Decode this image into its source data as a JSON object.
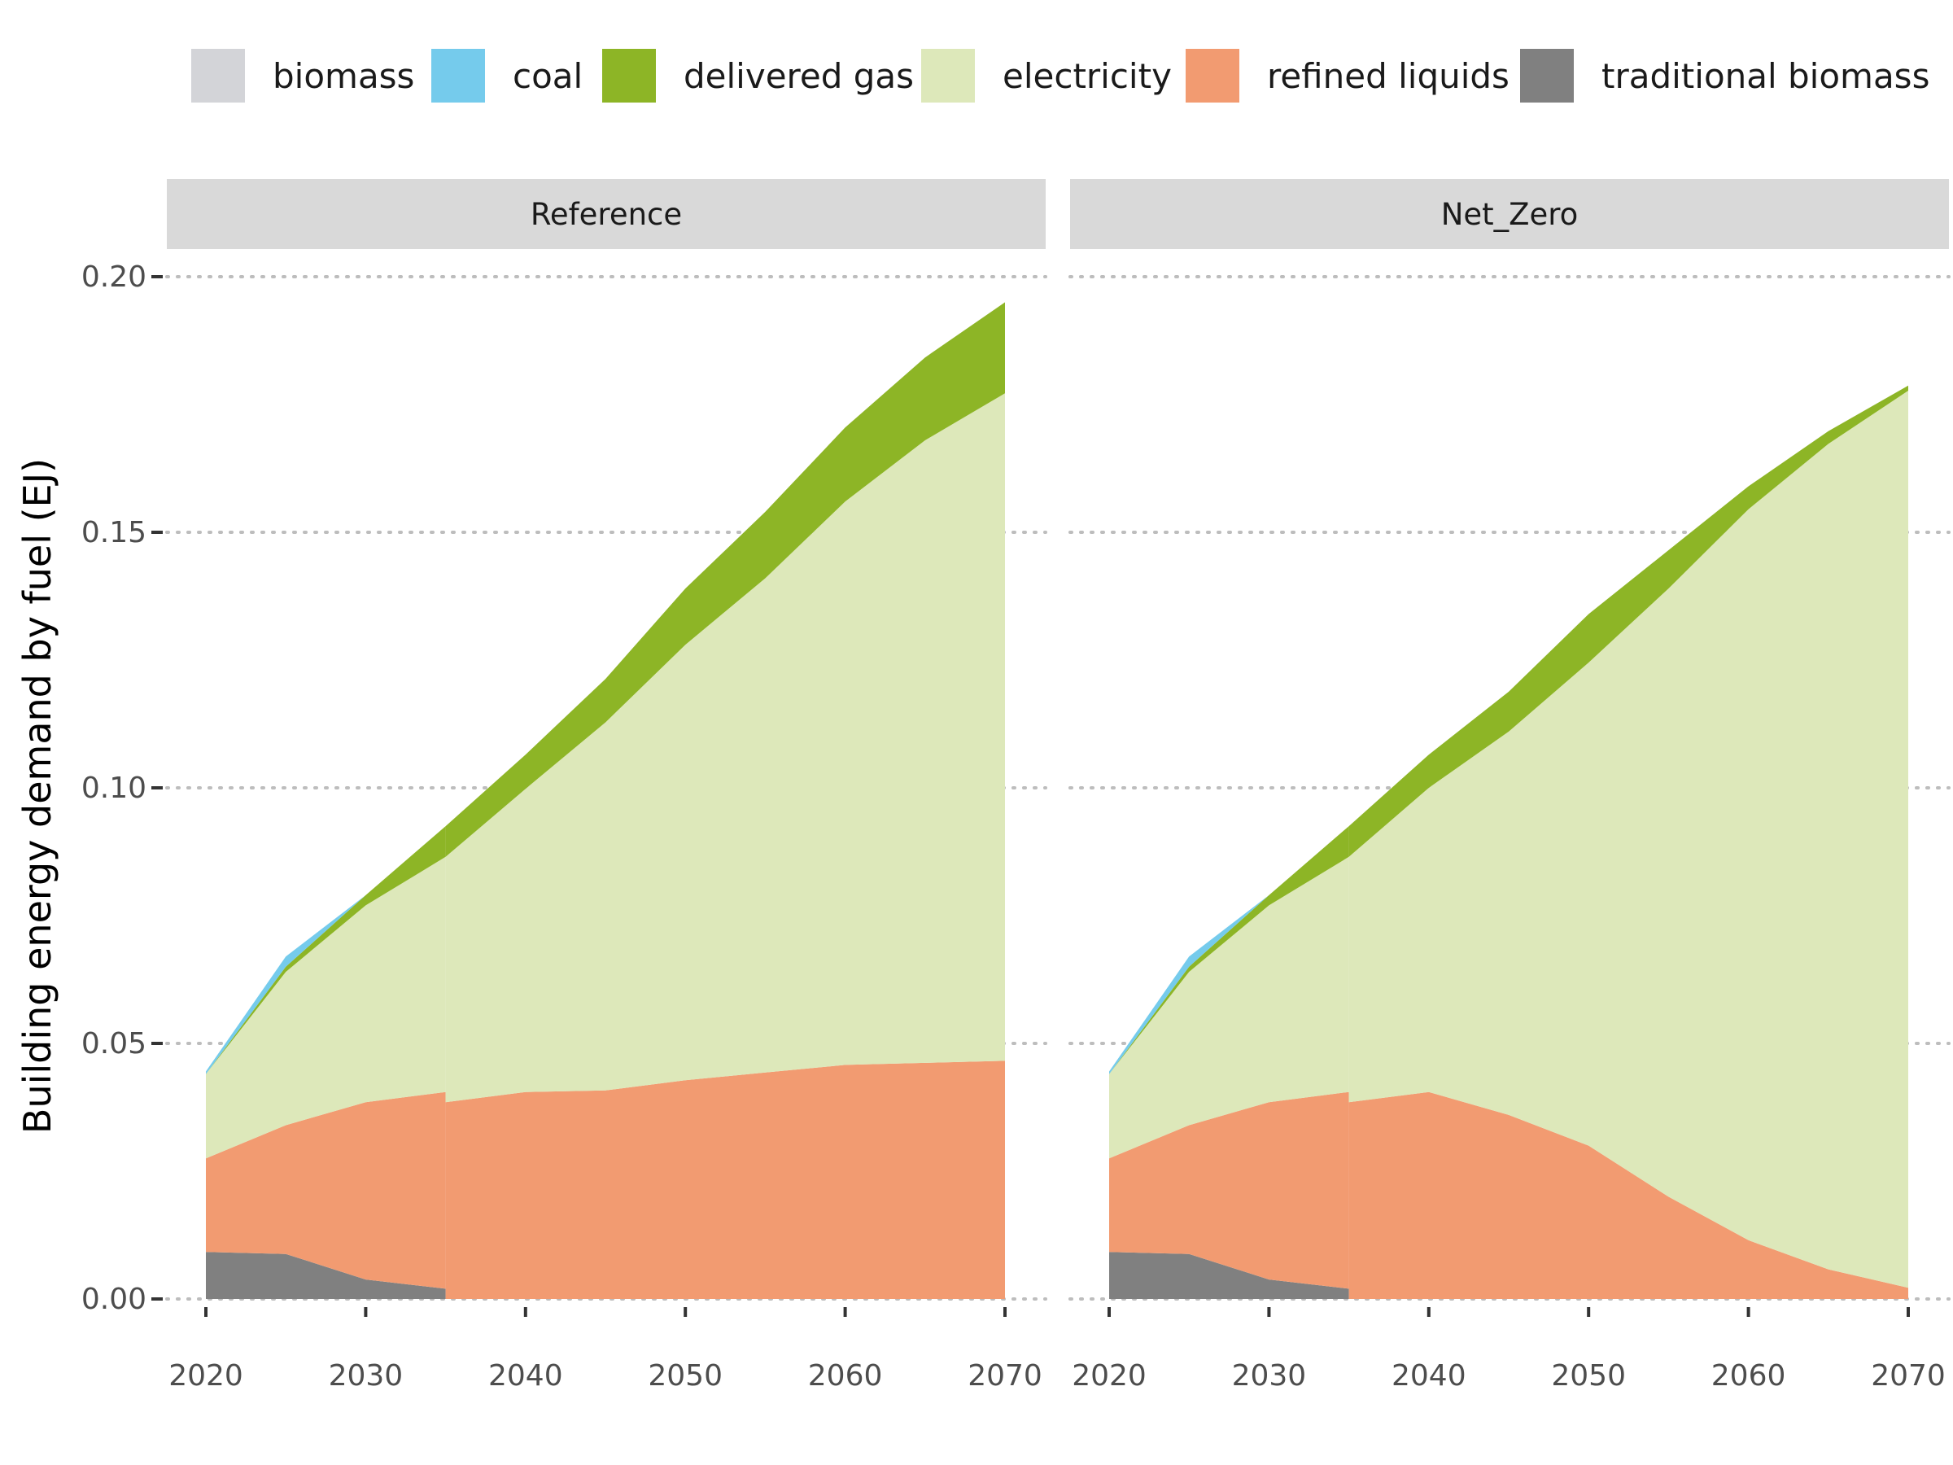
{
  "chart_data": {
    "type": "area",
    "stacked": true,
    "facet_by": "scenario",
    "ylabel": "Building energy demand by fuel (EJ)",
    "xlabel": "",
    "ylim": [
      0,
      0.2
    ],
    "xlim": [
      2020,
      2070
    ],
    "x_ticks": [
      2020,
      2030,
      2040,
      2050,
      2060,
      2070
    ],
    "y_ticks": [
      0.0,
      0.05,
      0.1,
      0.15,
      0.2
    ],
    "y_tick_labels": [
      "0.00",
      "0.05",
      "0.10",
      "0.15",
      "0.20"
    ],
    "grid": "major y only (dotted)",
    "legend_position": "top",
    "legend": [
      {
        "name": "biomass",
        "color": "#D3D4D8"
      },
      {
        "name": "coal",
        "color": "#75CBEC"
      },
      {
        "name": "delivered gas",
        "color": "#8DB526"
      },
      {
        "name": "electricity",
        "color": "#DDE8BA"
      },
      {
        "name": "refined liquids",
        "color": "#F29B71"
      },
      {
        "name": "traditional biomass",
        "color": "#808080"
      }
    ],
    "stack_order_bottom_to_top": [
      "traditional biomass",
      "refined liquids",
      "electricity",
      "delivered gas",
      "coal",
      "biomass"
    ],
    "panels": [
      {
        "title": "Reference",
        "segments": [
          {
            "x": [
              2020,
              2025,
              2030,
              2035
            ],
            "series": [
              {
                "name": "traditional biomass",
                "values": [
                  0.0092,
                  0.0088,
                  0.0038,
                  0.002
                ]
              },
              {
                "name": "refined liquids",
                "values": [
                  0.0183,
                  0.0252,
                  0.0347,
                  0.0385
                ]
              },
              {
                "name": "electricity",
                "values": [
                  0.0165,
                  0.03,
                  0.0385,
                  0.046
                ]
              },
              {
                "name": "delivered gas",
                "values": [
                  0.0,
                  0.001,
                  0.002,
                  0.006
                ]
              },
              {
                "name": "coal",
                "values": [
                  0.0005,
                  0.002,
                  0.0,
                  0.0
                ]
              },
              {
                "name": "biomass",
                "values": [
                  0.0,
                  0.0,
                  0.0,
                  0.0
                ]
              }
            ]
          },
          {
            "x": [
              2035,
              2040,
              2045,
              2050,
              2055,
              2060,
              2065,
              2070
            ],
            "series": [
              {
                "name": "traditional biomass",
                "values": [
                  0,
                  0,
                  0,
                  0,
                  0,
                  0,
                  0,
                  0
                ]
              },
              {
                "name": "refined liquids",
                "values": [
                  0.0385,
                  0.0405,
                  0.0408,
                  0.0428,
                  0.0443,
                  0.0458,
                  0.0462,
                  0.0466
                ]
              },
              {
                "name": "electricity",
                "values": [
                  0.048,
                  0.0593,
                  0.072,
                  0.0852,
                  0.0967,
                  0.1102,
                  0.1218,
                  0.1306
                ]
              },
              {
                "name": "delivered gas",
                "values": [
                  0.006,
                  0.0067,
                  0.0085,
                  0.011,
                  0.013,
                  0.0145,
                  0.0162,
                  0.0178
                ]
              },
              {
                "name": "coal",
                "values": [
                  0,
                  0,
                  0,
                  0,
                  0,
                  0,
                  0,
                  0
                ]
              },
              {
                "name": "biomass",
                "values": [
                  0,
                  0,
                  0,
                  0,
                  0,
                  0,
                  0,
                  0
                ]
              }
            ]
          }
        ]
      },
      {
        "title": "Net_Zero",
        "segments": [
          {
            "x": [
              2020,
              2025,
              2030,
              2035
            ],
            "series": [
              {
                "name": "traditional biomass",
                "values": [
                  0.0092,
                  0.0088,
                  0.0038,
                  0.002
                ]
              },
              {
                "name": "refined liquids",
                "values": [
                  0.0183,
                  0.0252,
                  0.0347,
                  0.0385
                ]
              },
              {
                "name": "electricity",
                "values": [
                  0.0165,
                  0.03,
                  0.0385,
                  0.046
                ]
              },
              {
                "name": "delivered gas",
                "values": [
                  0.0,
                  0.001,
                  0.002,
                  0.006
                ]
              },
              {
                "name": "coal",
                "values": [
                  0.0005,
                  0.002,
                  0.0,
                  0.0
                ]
              },
              {
                "name": "biomass",
                "values": [
                  0.0,
                  0.0,
                  0.0,
                  0.0
                ]
              }
            ]
          },
          {
            "x": [
              2035,
              2040,
              2045,
              2050,
              2055,
              2060,
              2065,
              2070
            ],
            "series": [
              {
                "name": "traditional biomass",
                "values": [
                  0,
                  0,
                  0,
                  0,
                  0,
                  0,
                  0,
                  0
                ]
              },
              {
                "name": "refined liquids",
                "values": [
                  0.0385,
                  0.0405,
                  0.036,
                  0.03,
                  0.02,
                  0.0115,
                  0.0058,
                  0.0022
                ]
              },
              {
                "name": "electricity",
                "values": [
                  0.048,
                  0.0595,
                  0.075,
                  0.0945,
                  0.119,
                  0.143,
                  0.1615,
                  0.1755
                ]
              },
              {
                "name": "delivered gas",
                "values": [
                  0.006,
                  0.0065,
                  0.0078,
                  0.0095,
                  0.0075,
                  0.0045,
                  0.0025,
                  0.001
                ]
              },
              {
                "name": "coal",
                "values": [
                  0,
                  0,
                  0,
                  0,
                  0,
                  0,
                  0,
                  0
                ]
              },
              {
                "name": "biomass",
                "values": [
                  0,
                  0,
                  0,
                  0,
                  0,
                  0,
                  0,
                  0
                ]
              }
            ]
          }
        ]
      }
    ]
  }
}
